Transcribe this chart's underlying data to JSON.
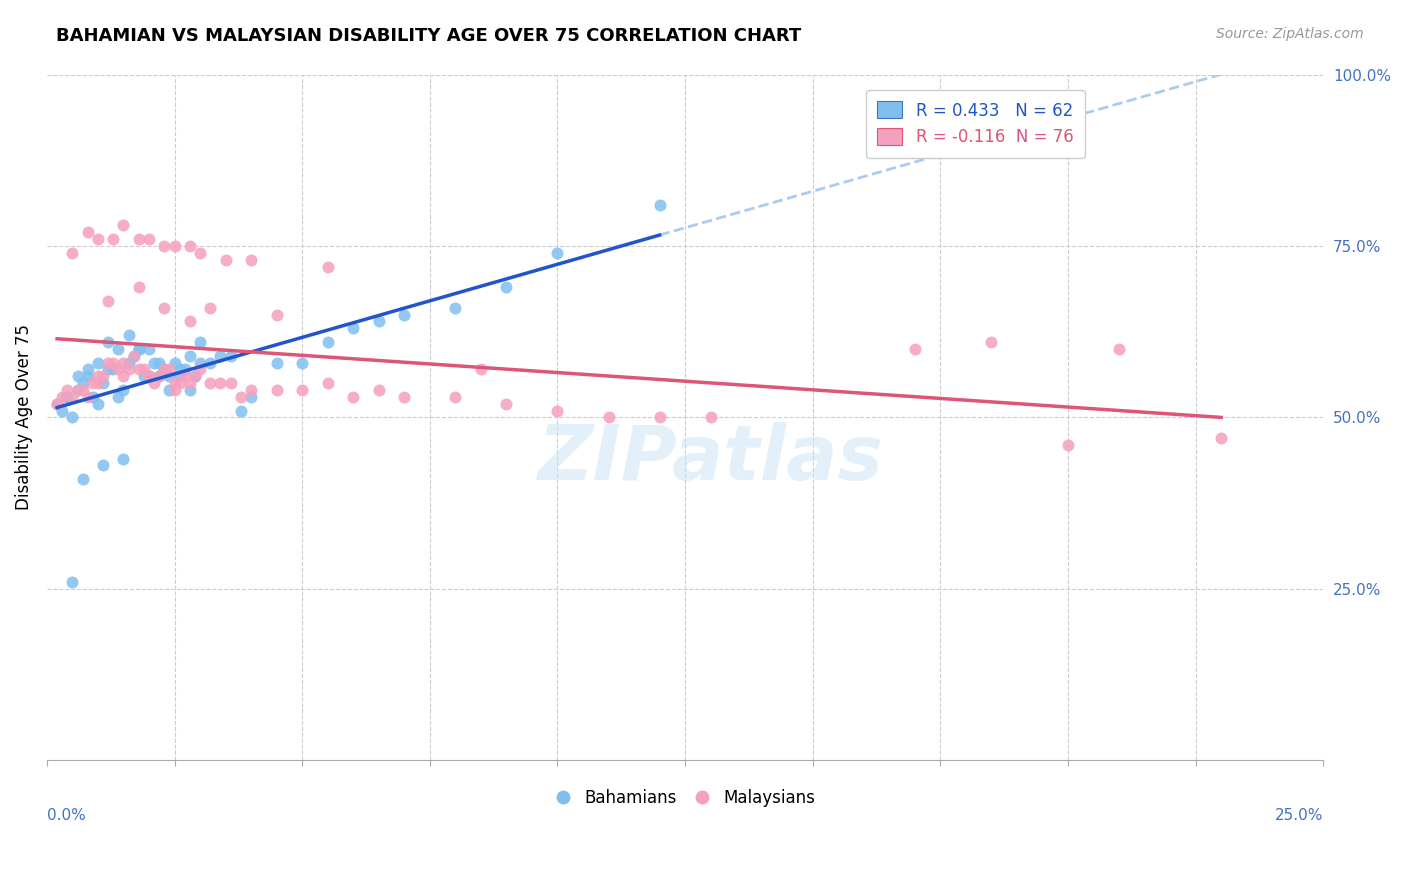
{
  "title": "BAHAMIAN VS MALAYSIAN DISABILITY AGE OVER 75 CORRELATION CHART",
  "source": "Source: ZipAtlas.com",
  "ylabel": "Disability Age Over 75",
  "xlim": [
    0.0,
    25.0
  ],
  "ylim": [
    0.0,
    100.0
  ],
  "legend_blue": "R = 0.433   N = 62",
  "legend_pink": "R = -0.116  N = 76",
  "blue_color": "#7fbfef",
  "pink_color": "#f5a0bc",
  "trend_blue": "#2255cc",
  "trend_pink": "#dd5577",
  "watermark": "ZIPatlas",
  "bahamians_x": [
    0.2,
    0.3,
    0.4,
    0.5,
    0.6,
    0.7,
    0.8,
    0.9,
    1.0,
    1.1,
    1.2,
    1.3,
    1.4,
    1.5,
    1.6,
    1.7,
    1.8,
    1.9,
    2.0,
    2.1,
    2.2,
    2.3,
    2.4,
    2.5,
    2.6,
    2.7,
    2.8,
    2.9,
    3.0,
    3.2,
    3.4,
    3.6,
    3.8,
    4.0,
    4.5,
    5.0,
    5.5,
    6.0,
    6.5,
    7.0,
    8.0,
    9.0,
    10.0,
    0.4,
    0.6,
    0.8,
    1.0,
    1.2,
    1.4,
    1.6,
    1.8,
    2.0,
    2.2,
    2.4,
    2.6,
    2.8,
    3.0,
    0.5,
    0.7,
    1.1,
    1.5,
    12.0
  ],
  "bahamians_y": [
    52,
    51,
    53,
    50,
    54,
    55,
    56,
    53,
    52,
    55,
    57,
    57,
    53,
    54,
    58,
    59,
    60,
    56,
    60,
    58,
    58,
    57,
    56,
    58,
    57,
    57,
    59,
    56,
    61,
    58,
    59,
    59,
    51,
    53,
    58,
    58,
    61,
    63,
    64,
    65,
    66,
    69,
    74,
    53,
    56,
    57,
    58,
    61,
    60,
    62,
    60,
    56,
    56,
    54,
    56,
    54,
    58,
    26,
    41,
    43,
    44,
    81
  ],
  "malaysians_x": [
    0.2,
    0.3,
    0.4,
    0.5,
    0.6,
    0.7,
    0.8,
    0.9,
    1.0,
    1.1,
    1.2,
    1.3,
    1.4,
    1.5,
    1.6,
    1.7,
    1.8,
    1.9,
    2.0,
    2.1,
    2.2,
    2.3,
    2.4,
    2.5,
    2.6,
    2.7,
    2.8,
    2.9,
    3.0,
    3.2,
    3.4,
    3.6,
    4.0,
    4.5,
    5.0,
    5.5,
    6.0,
    6.5,
    7.0,
    8.0,
    9.0,
    10.0,
    11.0,
    12.0,
    13.0,
    0.5,
    0.8,
    1.0,
    1.3,
    1.5,
    1.8,
    2.0,
    2.3,
    2.5,
    2.8,
    3.0,
    3.5,
    4.0,
    1.2,
    1.8,
    2.3,
    2.8,
    4.5,
    3.2,
    5.5,
    17.0,
    21.0,
    18.5,
    1.0,
    1.5,
    2.0,
    2.5,
    3.8,
    8.5,
    23.0,
    20.0
  ],
  "malaysians_y": [
    52,
    53,
    54,
    53,
    54,
    54,
    53,
    55,
    55,
    56,
    58,
    58,
    57,
    56,
    57,
    59,
    57,
    57,
    56,
    55,
    56,
    57,
    57,
    55,
    55,
    56,
    55,
    56,
    57,
    55,
    55,
    55,
    54,
    54,
    54,
    55,
    53,
    54,
    53,
    53,
    52,
    51,
    50,
    50,
    50,
    74,
    77,
    76,
    76,
    78,
    76,
    76,
    75,
    75,
    75,
    74,
    73,
    73,
    67,
    69,
    66,
    64,
    65,
    66,
    72,
    60,
    60,
    61,
    56,
    58,
    56,
    54,
    53,
    57,
    47,
    46
  ]
}
